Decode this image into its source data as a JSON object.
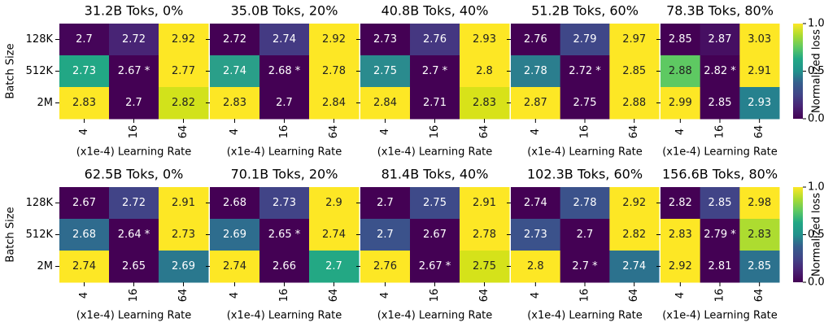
{
  "chart_data": [
    {
      "type": "heatmap",
      "title": "31.2B Toks, 0%",
      "x_label": "(x1e-4) Learning Rate",
      "y_label": "Batch Size",
      "x_categories": [
        "4",
        "16",
        "64"
      ],
      "y_categories": [
        "128K",
        "512K",
        "2M"
      ],
      "values": [
        [
          2.7,
          2.72,
          2.92
        ],
        [
          2.73,
          2.67,
          2.77
        ],
        [
          2.83,
          2.7,
          2.82
        ]
      ],
      "value_labels": [
        [
          "2.7",
          "2.72",
          "2.92"
        ],
        [
          "2.73",
          "2.67 *",
          "2.77"
        ],
        [
          "2.83",
          "2.7",
          "2.82"
        ]
      ],
      "colors": [
        [
          "#450559",
          "#482475",
          "#fde725"
        ],
        [
          "#22a785",
          "#440154",
          "#fde725"
        ],
        [
          "#fde725",
          "#440154",
          "#d2e21b"
        ]
      ]
    },
    {
      "type": "heatmap",
      "title": "35.0B Toks, 20%",
      "x_label": "(x1e-4) Learning Rate",
      "x_categories": [
        "4",
        "16",
        "64"
      ],
      "values": [
        [
          2.72,
          2.74,
          2.92
        ],
        [
          2.74,
          2.68,
          2.78
        ],
        [
          2.83,
          2.7,
          2.84
        ]
      ],
      "value_labels": [
        [
          "2.72",
          "2.74",
          "2.92"
        ],
        [
          "2.74",
          "2.68 *",
          "2.78"
        ],
        [
          "2.83",
          "2.7",
          "2.84"
        ]
      ],
      "colors": [
        [
          "#440154",
          "#443a83",
          "#fde725"
        ],
        [
          "#2a9f89",
          "#440154",
          "#fde725"
        ],
        [
          "#fde725",
          "#440154",
          "#fde725"
        ]
      ]
    },
    {
      "type": "heatmap",
      "title": "40.8B Toks, 40%",
      "x_label": "(x1e-4) Learning Rate",
      "x_categories": [
        "4",
        "16",
        "64"
      ],
      "values": [
        [
          2.73,
          2.76,
          2.93
        ],
        [
          2.75,
          2.7,
          2.8
        ],
        [
          2.84,
          2.71,
          2.83
        ]
      ],
      "value_labels": [
        [
          "2.73",
          "2.76",
          "2.93"
        ],
        [
          "2.75",
          "2.7 *",
          "2.8"
        ],
        [
          "2.84",
          "2.71",
          "2.83"
        ]
      ],
      "colors": [
        [
          "#440154",
          "#453781",
          "#fde725"
        ],
        [
          "#2a8b8e",
          "#440154",
          "#fde725"
        ],
        [
          "#fde725",
          "#440154",
          "#d8e219"
        ]
      ]
    },
    {
      "type": "heatmap",
      "title": "51.2B Toks, 60%",
      "x_label": "(x1e-4) Learning Rate",
      "x_categories": [
        "4",
        "16",
        "64"
      ],
      "values": [
        [
          2.76,
          2.79,
          2.97
        ],
        [
          2.78,
          2.72,
          2.85
        ],
        [
          2.87,
          2.75,
          2.88
        ]
      ],
      "value_labels": [
        [
          "2.76",
          "2.79",
          "2.97"
        ],
        [
          "2.78",
          "2.72 *",
          "2.85"
        ],
        [
          "2.87",
          "2.75",
          "2.88"
        ]
      ],
      "colors": [
        [
          "#440154",
          "#3f4788",
          "#fde725"
        ],
        [
          "#2b7e8e",
          "#440154",
          "#fde725"
        ],
        [
          "#fde725",
          "#440154",
          "#fde725"
        ]
      ]
    },
    {
      "type": "heatmap",
      "title": "78.3B Toks, 80%",
      "x_label": "(x1e-4) Learning Rate",
      "x_categories": [
        "4",
        "16",
        "64"
      ],
      "values": [
        [
          2.85,
          2.87,
          3.03
        ],
        [
          2.88,
          2.82,
          2.91
        ],
        [
          2.99,
          2.85,
          2.93
        ]
      ],
      "value_labels": [
        [
          "2.85",
          "2.87",
          "3.03"
        ],
        [
          "2.88",
          "2.82 *",
          "2.91"
        ],
        [
          "2.99",
          "2.85",
          "2.93"
        ]
      ],
      "colors": [
        [
          "#440154",
          "#460f62",
          "#fde725"
        ],
        [
          "#5ec962",
          "#440154",
          "#fde725"
        ],
        [
          "#fde725",
          "#440154",
          "#26818e"
        ]
      ]
    },
    {
      "type": "heatmap",
      "title": "62.5B Toks, 0%",
      "x_label": "(x1e-4) Learning Rate",
      "y_label": "Batch Size",
      "x_categories": [
        "4",
        "16",
        "64"
      ],
      "y_categories": [
        "128K",
        "512K",
        "2M"
      ],
      "values": [
        [
          2.67,
          2.72,
          2.91
        ],
        [
          2.68,
          2.64,
          2.73
        ],
        [
          2.74,
          2.65,
          2.69
        ]
      ],
      "value_labels": [
        [
          "2.67",
          "2.72",
          "2.91"
        ],
        [
          "2.68",
          "2.64 *",
          "2.73"
        ],
        [
          "2.74",
          "2.65",
          "2.69"
        ]
      ],
      "colors": [
        [
          "#440154",
          "#414487",
          "#fde725"
        ],
        [
          "#2f6b8e",
          "#440154",
          "#fde725"
        ],
        [
          "#fde725",
          "#440154",
          "#2a788e"
        ]
      ]
    },
    {
      "type": "heatmap",
      "title": "70.1B Toks, 20%",
      "x_label": "(x1e-4) Learning Rate",
      "x_categories": [
        "4",
        "16",
        "64"
      ],
      "values": [
        [
          2.68,
          2.73,
          2.9
        ],
        [
          2.69,
          2.65,
          2.74
        ],
        [
          2.74,
          2.66,
          2.7
        ]
      ],
      "value_labels": [
        [
          "2.68",
          "2.73",
          "2.9"
        ],
        [
          "2.69",
          "2.65 *",
          "2.74"
        ],
        [
          "2.74",
          "2.66",
          "2.7"
        ]
      ],
      "colors": [
        [
          "#440154",
          "#414487",
          "#fde725"
        ],
        [
          "#2e6d8e",
          "#440154",
          "#fde725"
        ],
        [
          "#fde725",
          "#440154",
          "#23a884"
        ]
      ]
    },
    {
      "type": "heatmap",
      "title": "81.4B Toks, 40%",
      "x_label": "(x1e-4) Learning Rate",
      "x_categories": [
        "4",
        "16",
        "64"
      ],
      "values": [
        [
          2.7,
          2.75,
          2.91
        ],
        [
          2.7,
          2.67,
          2.78
        ],
        [
          2.76,
          2.67,
          2.75
        ]
      ],
      "value_labels": [
        [
          "2.7",
          "2.75",
          "2.91"
        ],
        [
          "2.7",
          "2.67",
          "2.78"
        ],
        [
          "2.76",
          "2.67 *",
          "2.75"
        ]
      ],
      "colors": [
        [
          "#440154",
          "#3e4a89",
          "#fde725"
        ],
        [
          "#3b528b",
          "#440154",
          "#fde725"
        ],
        [
          "#fde725",
          "#440154",
          "#d5e21a"
        ]
      ]
    },
    {
      "type": "heatmap",
      "title": "102.3B Toks, 60%",
      "x_label": "(x1e-4) Learning Rate",
      "x_categories": [
        "4",
        "16",
        "64"
      ],
      "values": [
        [
          2.74,
          2.78,
          2.92
        ],
        [
          2.73,
          2.7,
          2.82
        ],
        [
          2.8,
          2.7,
          2.74
        ]
      ],
      "value_labels": [
        [
          "2.74",
          "2.78",
          "2.92"
        ],
        [
          "2.73",
          "2.7",
          "2.82"
        ],
        [
          "2.8",
          "2.7 *",
          "2.74"
        ]
      ],
      "colors": [
        [
          "#440154",
          "#3b528b",
          "#fde725"
        ],
        [
          "#3b528b",
          "#440154",
          "#fde725"
        ],
        [
          "#fde725",
          "#440154",
          "#2c728e"
        ]
      ]
    },
    {
      "type": "heatmap",
      "title": "156.6B Toks, 80%",
      "x_label": "(x1e-4) Learning Rate",
      "x_categories": [
        "4",
        "16",
        "64"
      ],
      "values": [
        [
          2.82,
          2.85,
          2.98
        ],
        [
          2.83,
          2.79,
          2.83
        ],
        [
          2.92,
          2.81,
          2.85
        ]
      ],
      "value_labels": [
        [
          "2.82",
          "2.85",
          "2.98"
        ],
        [
          "2.83",
          "2.79 *",
          "2.83"
        ],
        [
          "2.92",
          "2.81",
          "2.85"
        ]
      ],
      "colors": [
        [
          "#440154",
          "#414487",
          "#fde725"
        ],
        [
          "#fde725",
          "#440154",
          "#addc30"
        ],
        [
          "#fde725",
          "#440154",
          "#2c728e"
        ]
      ]
    }
  ],
  "colorbar": {
    "label": "Normalized loss",
    "lim": [
      0,
      1
    ],
    "ticks": [
      {
        "value": 0,
        "label": "0.0"
      },
      {
        "value": 0.5,
        "label": "0.5"
      },
      {
        "value": 1,
        "label": "1.0"
      }
    ]
  }
}
